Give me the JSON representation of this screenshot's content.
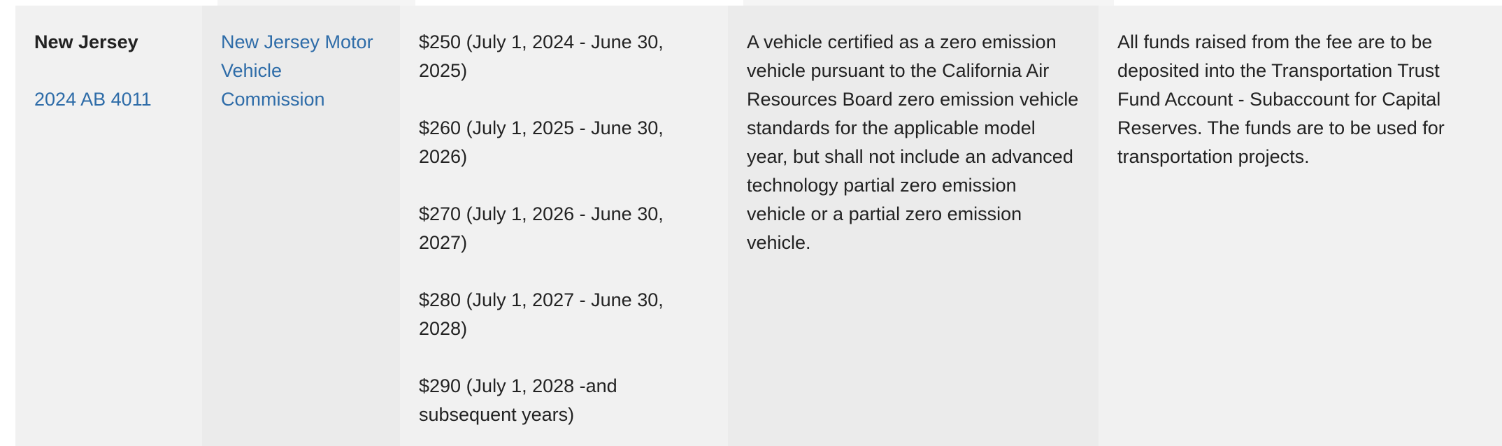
{
  "row": {
    "state": "New Jersey",
    "bill_link": "2024 AB 4011",
    "agency_link": "New Jersey Motor Vehicle Commission",
    "fees": [
      "$250 (July 1, 2024 - June 30, 2025)",
      "$260 (July 1, 2025 - June 30, 2026)",
      "$270 (July 1, 2026 - June 30, 2027)",
      "$280 (July 1, 2027 - June 30, 2028)",
      "$290 (July 1, 2028 -and subsequent years)"
    ],
    "vehicle_definition": "A vehicle certified as a zero emission vehicle pursuant to the California Air Resources Board zero emission vehicle standards for the applicable model year, but shall not include an advanced technology partial zero emission vehicle or a partial zero emission vehicle.",
    "use_of_funds": "All funds raised from the fee are to be deposited into the Transportation Trust Fund Account - Subaccount for Capital Reserves. The funds are to be used for transportation projects."
  },
  "colors": {
    "link": "#2e6ca8",
    "text": "#222222",
    "cell": "#f1f1f1",
    "cell_alt": "#ebebeb"
  }
}
